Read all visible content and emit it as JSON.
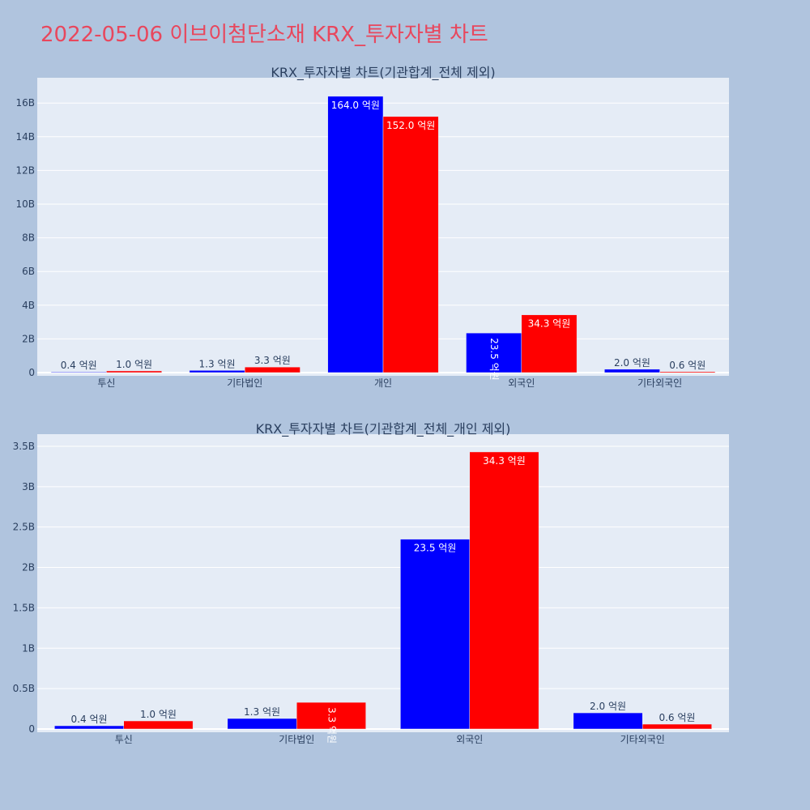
{
  "page_title": "2022-05-06 이브이첨단소재 KRX_투자자별 차트",
  "colors": {
    "buy": "#0000ff",
    "sell": "#ff0000",
    "plot_bg": "#e5ecf6",
    "page_bg": "#b0c4de",
    "title": "#e8475d"
  },
  "chart_data": [
    {
      "type": "bar",
      "title": "KRX_투자자별 차트(기관합계_전체 제외)",
      "categories": [
        "투신",
        "기타법인",
        "개인",
        "외국인",
        "기타외국인"
      ],
      "series": [
        {
          "color": "#0000ff",
          "values": [
            0.04,
            0.13,
            16.4,
            2.35,
            0.2
          ],
          "labels": [
            "0.4 억원",
            "1.3 억원",
            "164.0 억원",
            "23.5 억원",
            "2.0 억원"
          ]
        },
        {
          "color": "#ff0000",
          "values": [
            0.1,
            0.33,
            15.2,
            3.43,
            0.06
          ],
          "labels": [
            "1.0 억원",
            "3.3 억원",
            "152.0 억원",
            "34.3 억원",
            "0.6 억원"
          ]
        }
      ],
      "yunit": "B",
      "ylim": [
        0,
        17.5
      ],
      "yticks": [
        0,
        2,
        4,
        6,
        8,
        10,
        12,
        14,
        16
      ],
      "ytick_labels": [
        "0",
        "2B",
        "4B",
        "6B",
        "8B",
        "10B",
        "12B",
        "14B",
        "16B"
      ],
      "grid": true,
      "legend": "none"
    },
    {
      "type": "bar",
      "title": "KRX_투자자별 차트(기관합계_전체_개인 제외)",
      "categories": [
        "투신",
        "기타법인",
        "외국인",
        "기타외국인"
      ],
      "series": [
        {
          "color": "#0000ff",
          "values": [
            0.04,
            0.13,
            2.35,
            0.2
          ],
          "labels": [
            "0.4 억원",
            "1.3 억원",
            "23.5 억원",
            "2.0 억원"
          ]
        },
        {
          "color": "#ff0000",
          "values": [
            0.1,
            0.33,
            3.43,
            0.06
          ],
          "labels": [
            "1.0 억원",
            "3.3 억원",
            "34.3 억원",
            "0.6 억원"
          ]
        }
      ],
      "yunit": "B",
      "ylim": [
        0,
        3.65
      ],
      "yticks": [
        0,
        0.5,
        1,
        1.5,
        2,
        2.5,
        3,
        3.5
      ],
      "ytick_labels": [
        "0",
        "0.5B",
        "1B",
        "1.5B",
        "2B",
        "2.5B",
        "3B",
        "3.5B"
      ],
      "grid": true,
      "legend": "none"
    }
  ]
}
